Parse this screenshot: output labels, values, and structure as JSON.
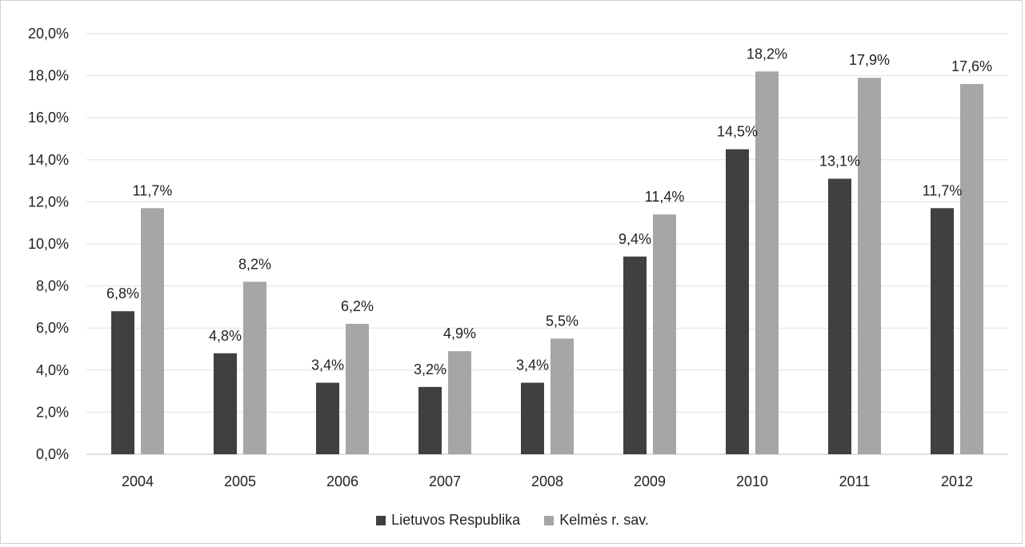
{
  "chart_data": {
    "type": "bar",
    "categories": [
      "2004",
      "2005",
      "2006",
      "2007",
      "2008",
      "2009",
      "2010",
      "2011",
      "2012"
    ],
    "series": [
      {
        "name": "Lietuvos Respublika",
        "color": "#404040",
        "values": [
          6.8,
          4.8,
          3.4,
          3.2,
          3.4,
          9.4,
          14.5,
          13.1,
          11.7
        ],
        "labels": [
          "6,8%",
          "4,8%",
          "3,4%",
          "3,2%",
          "3,4%",
          "9,4%",
          "14,5%",
          "13,1%",
          "11,7%"
        ]
      },
      {
        "name": "Kelmės r. sav.",
        "color": "#a6a6a6",
        "values": [
          11.7,
          8.2,
          6.2,
          4.9,
          5.5,
          11.4,
          18.2,
          17.9,
          17.6
        ],
        "labels": [
          "11,7%",
          "8,2%",
          "6,2%",
          "4,9%",
          "5,5%",
          "11,4%",
          "18,2%",
          "17,9%",
          "17,6%"
        ]
      }
    ],
    "ylim": [
      0,
      20
    ],
    "yticks": [
      0,
      2,
      4,
      6,
      8,
      10,
      12,
      14,
      16,
      18,
      20
    ],
    "ytick_labels": [
      "0,0%",
      "2,0%",
      "4,0%",
      "6,0%",
      "8,0%",
      "10,0%",
      "12,0%",
      "14,0%",
      "16,0%",
      "18,0%",
      "20,0%"
    ],
    "grid": true,
    "legend_position": "bottom",
    "title": "",
    "xlabel": "",
    "ylabel": ""
  }
}
